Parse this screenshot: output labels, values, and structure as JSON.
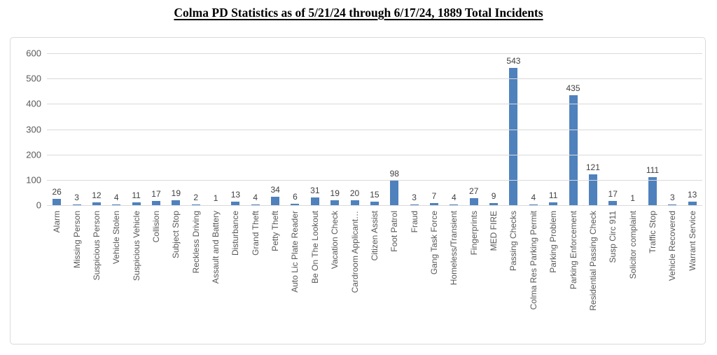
{
  "page": {
    "title": "Colma PD Statistics as of 5/21/24 through 6/17/24, 1889 Total Incidents"
  },
  "chart_data": {
    "type": "bar",
    "title": "Colma PD Statistics as of 5/21/24 through 6/17/24, 1889 Total Incidents",
    "total_incidents": "1889",
    "date_range": "5/21/24 through 6/17/24",
    "categories": [
      "Alarm",
      "Missing Person",
      "Suspicious Person",
      "Vehicle Stolen",
      "Suspicious Vehicle",
      "Collision",
      "Subject Stop",
      "Reckless Driving",
      "Assault and Battery",
      "Disturbance",
      "Grand Theft",
      "Petty Theft",
      "Auto Lic Plate Reader",
      "Be On The Lookout",
      "Vacation Check",
      "Cardroom Applicant…",
      "Citizen Assist",
      "Foot Patrol",
      "Fraud",
      "Gang Task Force",
      "Homeless/Transient",
      "Fingerprints",
      "MED FIRE",
      "Passing Checks",
      "Colma Res Parking Permit",
      "Parking Problem",
      "Parking Enforcement",
      "Residential Passing Check",
      "Susp Circ 911",
      "Solicitor complaint",
      "Traffic Stop",
      "Vehicle Recovered",
      "Warrant Service"
    ],
    "values": [
      26,
      3,
      12,
      4,
      11,
      17,
      19,
      2,
      1,
      13,
      4,
      34,
      6,
      31,
      19,
      20,
      15,
      98,
      3,
      7,
      4,
      27,
      9,
      543,
      4,
      11,
      435,
      121,
      17,
      1,
      111,
      3,
      13
    ],
    "xlabel": "",
    "ylabel": "",
    "ylim": [
      0,
      600
    ],
    "yticks": [
      0,
      100,
      200,
      300,
      400,
      500,
      600
    ],
    "grid": "horizontal",
    "legend": "none",
    "value_labels_shown": true,
    "bar_color": "#4F81BD",
    "colors": {
      "gridline": "#D9D9D9",
      "chart_border": "#D9D9D9",
      "axis_label": "#595959",
      "value_label": "#404040",
      "title_text": "#000000",
      "background": "#FFFFFF"
    }
  }
}
